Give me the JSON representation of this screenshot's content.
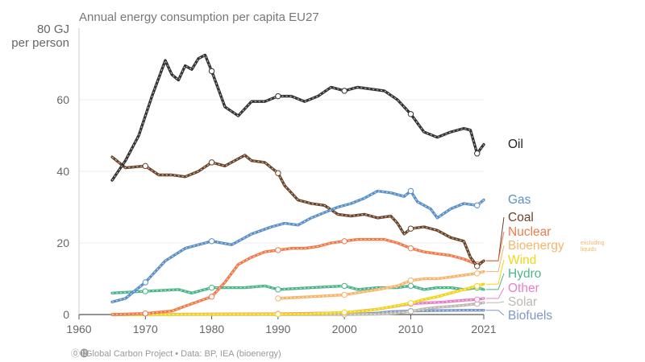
{
  "chart_data": {
    "type": "line",
    "title": "Annual energy consumption per capita EU27",
    "ylabel_line1": "80 GJ",
    "ylabel_line2": "per person",
    "xlabel": "",
    "xlim": [
      1960,
      2021
    ],
    "ylim": [
      0,
      80
    ],
    "x_ticks": [
      "1960",
      "1970",
      "1980",
      "1990",
      "2000",
      "2010",
      "2021"
    ],
    "y_ticks": [
      "0",
      "20",
      "40",
      "60"
    ],
    "grid": true,
    "legend": "right, labels at line ends",
    "series": [
      {
        "name": "Oil",
        "color": "#333333",
        "x": [
          1965,
          1967,
          1969,
          1971,
          1973,
          1974,
          1975,
          1976,
          1977,
          1978,
          1979,
          1980,
          1982,
          1984,
          1986,
          1988,
          1990,
          1992,
          1994,
          1996,
          1998,
          2000,
          2002,
          2004,
          2006,
          2008,
          2010,
          2012,
          2014,
          2016,
          2018,
          2019,
          2020,
          2021
        ],
        "values": [
          37.5,
          43,
          50,
          61,
          71,
          67,
          65.5,
          69.5,
          68.5,
          71.5,
          72.5,
          68,
          58,
          55.5,
          59.5,
          59.5,
          61,
          61,
          59.5,
          61,
          63.5,
          62.5,
          63.5,
          63,
          62.5,
          60,
          56,
          51,
          49.5,
          51,
          52,
          51.5,
          45,
          47.5
        ]
      },
      {
        "name": "Gas",
        "color": "#5b8fc7",
        "x": [
          1965,
          1967,
          1970,
          1973,
          1976,
          1980,
          1983,
          1986,
          1989,
          1991,
          1993,
          1995,
          1997,
          1999,
          2001,
          2003,
          2005,
          2007,
          2009,
          2010,
          2011,
          2013,
          2014,
          2016,
          2018,
          2020,
          2021
        ],
        "values": [
          3.5,
          4.5,
          9,
          15,
          18.5,
          20.5,
          19.5,
          22.5,
          24.5,
          25.5,
          25,
          27,
          28.5,
          30,
          31,
          32.5,
          34.5,
          34,
          33,
          34.5,
          31.5,
          29.5,
          27,
          29.5,
          31,
          30.5,
          32
        ]
      },
      {
        "name": "Coal",
        "color": "#6b4329",
        "x": [
          1965,
          1967,
          1970,
          1972,
          1974,
          1976,
          1978,
          1980,
          1982,
          1984,
          1985,
          1986,
          1988,
          1990,
          1991,
          1993,
          1995,
          1997,
          1999,
          2001,
          2003,
          2005,
          2007,
          2008,
          2009,
          2010,
          2012,
          2014,
          2016,
          2018,
          2019,
          2020,
          2021
        ],
        "values": [
          44,
          41,
          41.5,
          39,
          39,
          38.5,
          40,
          42.5,
          41.5,
          43.5,
          44.5,
          43,
          42.5,
          39.5,
          36,
          32,
          31,
          30.5,
          28,
          27.5,
          28,
          27,
          27.5,
          25.5,
          22.5,
          24,
          24.5,
          23.5,
          21.5,
          20.5,
          16,
          13.5,
          15
        ]
      },
      {
        "name": "Nuclear",
        "color": "#f07a4a",
        "x": [
          1965,
          1970,
          1974,
          1977,
          1980,
          1982,
          1984,
          1986,
          1988,
          1990,
          1992,
          1994,
          1996,
          1998,
          2000,
          2002,
          2004,
          2006,
          2008,
          2010,
          2012,
          2014,
          2016,
          2018,
          2020,
          2021
        ],
        "values": [
          0,
          0.3,
          1,
          3,
          5,
          9,
          14,
          16,
          17.5,
          18,
          18.5,
          18.5,
          19,
          20,
          20.5,
          21,
          21,
          21,
          20,
          18.5,
          17.5,
          17,
          16.5,
          15.5,
          14,
          15
        ]
      },
      {
        "name": "Bioenergy",
        "note": "excluding liquids",
        "color": "#f5b56b",
        "x": [
          1990,
          1995,
          2000,
          2005,
          2008,
          2010,
          2012,
          2014,
          2016,
          2018,
          2020,
          2021
        ],
        "values": [
          4.5,
          5,
          5.5,
          7,
          8,
          9.5,
          10,
          10,
          10.5,
          11,
          11.5,
          12
        ]
      },
      {
        "name": "Wind",
        "color": "#f2d519",
        "x": [
          1965,
          1990,
          1995,
          2000,
          2003,
          2005,
          2008,
          2010,
          2012,
          2014,
          2016,
          2018,
          2020,
          2021
        ],
        "values": [
          0,
          0.1,
          0.2,
          0.6,
          1,
          1.5,
          2.5,
          3.2,
          4.2,
          5,
          6,
          7,
          8,
          8.5
        ]
      },
      {
        "name": "Hydro",
        "color": "#4cb58a",
        "x": [
          1965,
          1970,
          1975,
          1977,
          1980,
          1985,
          1988,
          1990,
          1995,
          2000,
          2002,
          2005,
          2008,
          2010,
          2012,
          2014,
          2016,
          2018,
          2020,
          2021
        ],
        "values": [
          6,
          6.5,
          7,
          6,
          7.5,
          7.5,
          8,
          7,
          7.5,
          8,
          7,
          7.5,
          7.5,
          8,
          7,
          7.5,
          7.5,
          7,
          7.5,
          7
        ]
      },
      {
        "name": "Other",
        "color": "#e681c9",
        "x": [
          1965,
          1990,
          2000,
          2005,
          2010,
          2015,
          2018,
          2020,
          2021
        ],
        "values": [
          0,
          0.2,
          0.5,
          1.5,
          3,
          3.5,
          4,
          4.2,
          4.5
        ]
      },
      {
        "name": "Solar",
        "color": "#bdb8b0",
        "x": [
          1965,
          2000,
          2005,
          2008,
          2010,
          2012,
          2014,
          2016,
          2018,
          2020,
          2021
        ],
        "values": [
          0,
          0,
          0.1,
          0.4,
          0.9,
          1.6,
          2,
          2.3,
          2.6,
          3,
          3.3
        ]
      },
      {
        "name": "Biofuels",
        "color": "#7f98c8",
        "x": [
          1965,
          2000,
          2003,
          2005,
          2007,
          2010,
          2014,
          2018,
          2021
        ],
        "values": [
          0,
          0.1,
          0.2,
          0.4,
          0.8,
          1,
          1.1,
          1.2,
          1.2
        ]
      }
    ]
  },
  "footer": {
    "logo": "⓪⓭",
    "text": "Global Carbon Project  •  Data: BP, IEA (bioenergy)"
  }
}
